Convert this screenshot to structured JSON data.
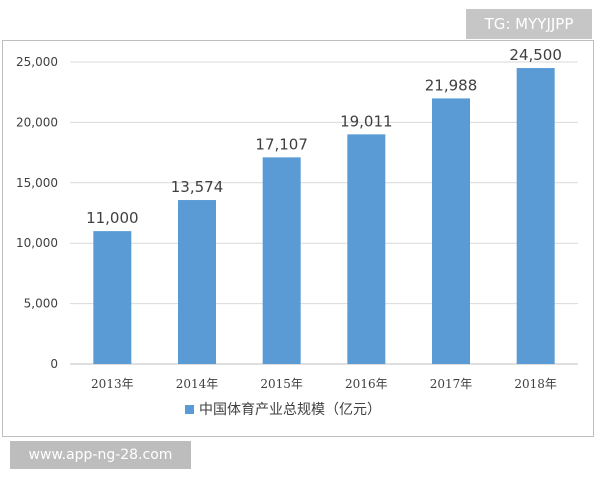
{
  "watermarks": {
    "top": "TG: MYYJJPP",
    "bottom": "www.app-ng-28.com"
  },
  "chart_data": {
    "type": "bar",
    "title": "",
    "xlabel": "",
    "ylabel": "",
    "categories": [
      "2013年",
      "2014年",
      "2015年",
      "2016年",
      "2017年",
      "2018年"
    ],
    "series": [
      {
        "name": "中国体育产业总规模（亿元）",
        "values": [
          11000,
          13574,
          17107,
          19011,
          21988,
          24500
        ],
        "data_labels": [
          "11,000",
          "13,574",
          "17,107",
          "19,011",
          "21,988",
          "24,500"
        ],
        "color": "#5b9bd5"
      }
    ],
    "ylim": [
      0,
      25000
    ],
    "yticks": [
      0,
      5000,
      10000,
      15000,
      20000,
      25000
    ],
    "ytick_labels": [
      "0",
      "5,000",
      "10,000",
      "15,000",
      "20,000",
      "25,000"
    ],
    "grid": true,
    "gridline_color": "#d9d9d9",
    "legend_position": "bottom"
  }
}
